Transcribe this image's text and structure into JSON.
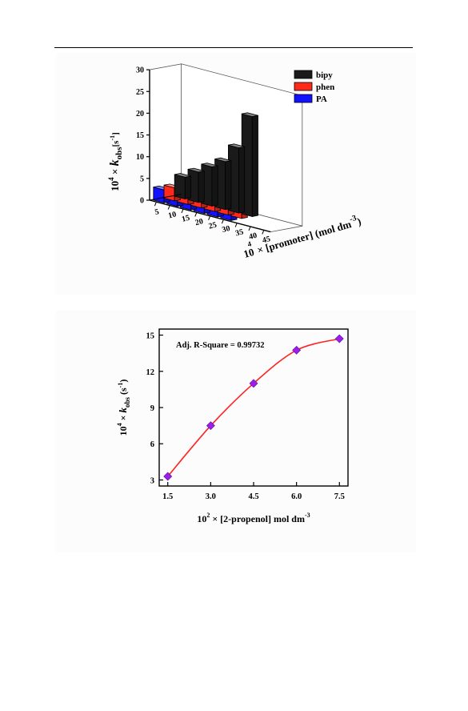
{
  "chart_data": [
    {
      "type": "bar",
      "projection": "3d",
      "series": [
        {
          "name": "bipy",
          "color": "#1a1a1a",
          "values": [
            5,
            7,
            9,
            11,
            15,
            23
          ]
        },
        {
          "name": "phen",
          "color": "#ff2a1a",
          "values": [
            3,
            4,
            5,
            6,
            7,
            9
          ]
        },
        {
          "name": "PA",
          "color": "#1212ff",
          "values": [
            3,
            3,
            3.5,
            4,
            5,
            6
          ]
        }
      ],
      "x": [
        5,
        10,
        15,
        20,
        25,
        30
      ],
      "x_ticks": [
        "5",
        "10",
        "15",
        "20",
        "25",
        "30",
        "35",
        "40",
        "45"
      ],
      "xlabel_prefix": "10",
      "xlabel_exp": "4",
      "xlabel_main": " × [promoter] (mol dm",
      "xlabel_unit_exp": "-3",
      "xlabel_close": ")",
      "ylabel_prefix": "10",
      "ylabel_exp": "4",
      "ylabel_times": " × ",
      "ylabel_k": "k",
      "ylabel_sub": "obs",
      "ylabel_unit": "[s",
      "ylabel_unit_exp": "-1",
      "ylabel_unit_close": "]",
      "ylim": [
        0,
        30
      ],
      "y_ticks": [
        "0",
        "5",
        "10",
        "15",
        "20",
        "25",
        "30"
      ],
      "legend_position": "top-right"
    },
    {
      "type": "scatter",
      "fit": "sigmoidal",
      "annotation": "Adj. R-Square = 0.99732",
      "series": [
        {
          "x": [
            1.5,
            3.0,
            4.5,
            6.0,
            7.5
          ],
          "y": [
            3.3,
            7.5,
            11.0,
            13.75,
            14.7
          ],
          "marker_color": "#9b1fe8",
          "line_color": "#ff2222"
        }
      ],
      "xlim": [
        1.2,
        7.8
      ],
      "ylim": [
        2.5,
        15.5
      ],
      "x_ticks": [
        "1.5",
        "3.0",
        "4.5",
        "6.0",
        "7.5"
      ],
      "y_ticks": [
        "3",
        "6",
        "9",
        "12",
        "15"
      ],
      "xlabel_prefix": "10",
      "xlabel_exp": "2",
      "xlabel_main": " × [2-propenol] mol dm",
      "xlabel_unit_exp": "-3",
      "ylabel_prefix": "10",
      "ylabel_exp": "4",
      "ylabel_times": " × ",
      "ylabel_k": "k",
      "ylabel_sub": "obs",
      "ylabel_unit": " (s",
      "ylabel_unit_exp": "-1",
      "ylabel_unit_close": ")"
    }
  ]
}
